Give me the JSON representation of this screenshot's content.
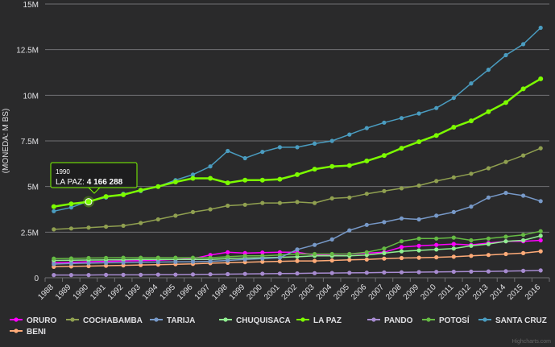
{
  "chart_data": {
    "type": "line",
    "title": "",
    "xlabel": "",
    "ylabel": "(MONEDA: M BS)",
    "ylim": [
      0,
      15000000
    ],
    "grid": true,
    "legend_position": "bottom",
    "y_ticks": [
      "0",
      "2.5M",
      "5M",
      "7.5M",
      "10M",
      "12.5M",
      "15M"
    ],
    "x": [
      "1988",
      "1989",
      "1990",
      "1991",
      "1992",
      "1993",
      "1994",
      "1995",
      "1996",
      "1997",
      "1998",
      "1999",
      "2000",
      "2001",
      "2002",
      "2003",
      "2004",
      "2005",
      "2006",
      "2007",
      "2008",
      "2009",
      "2010",
      "2011",
      "2012",
      "2013",
      "2014",
      "2015",
      "2016"
    ],
    "series": [
      {
        "name": "ORURO",
        "color": "#ff00ff",
        "values": [
          820000,
          850000,
          880000,
          900000,
          920000,
          940000,
          960000,
          1000000,
          1050000,
          1250000,
          1400000,
          1350000,
          1380000,
          1400000,
          1400000,
          1250000,
          1280000,
          1300000,
          1350000,
          1400000,
          1680000,
          1750000,
          1800000,
          1850000,
          1800000,
          1900000,
          2000000,
          2000000,
          2050000
        ]
      },
      {
        "name": "COCHABAMBA",
        "color": "#90a050",
        "values": [
          2650000,
          2700000,
          2750000,
          2800000,
          2850000,
          3000000,
          3200000,
          3400000,
          3600000,
          3750000,
          3950000,
          4000000,
          4100000,
          4100000,
          4150000,
          4100000,
          4350000,
          4400000,
          4600000,
          4750000,
          4900000,
          5050000,
          5300000,
          5500000,
          5700000,
          6000000,
          6350000,
          6700000,
          7100000
        ]
      },
      {
        "name": "TARIJA",
        "color": "#7799c8",
        "values": [
          750000,
          780000,
          800000,
          820000,
          830000,
          850000,
          860000,
          870000,
          880000,
          900000,
          950000,
          1000000,
          1050000,
          1100000,
          1550000,
          1800000,
          2100000,
          2600000,
          2900000,
          3050000,
          3250000,
          3200000,
          3400000,
          3600000,
          3900000,
          4400000,
          4650000,
          4500000,
          4200000
        ]
      },
      {
        "name": "CHUQUISACA",
        "color": "#90ee90",
        "values": [
          950000,
          960000,
          970000,
          980000,
          990000,
          1000000,
          1000000,
          1000000,
          1000000,
          1000000,
          1050000,
          1080000,
          1100000,
          1120000,
          1150000,
          1200000,
          1200000,
          1200000,
          1250000,
          1350000,
          1450000,
          1500000,
          1550000,
          1600000,
          1750000,
          1850000,
          2000000,
          2050000,
          2300000
        ]
      },
      {
        "name": "LA PAZ",
        "color": "#7cfc00",
        "values": [
          3900000,
          4050000,
          4166288,
          4450000,
          4550000,
          4800000,
          5000000,
          5250000,
          5450000,
          5450000,
          5200000,
          5350000,
          5350000,
          5400000,
          5650000,
          5950000,
          6100000,
          6150000,
          6400000,
          6700000,
          7100000,
          7450000,
          7800000,
          8250000,
          8600000,
          9100000,
          9600000,
          10350000,
          10900000
        ]
      },
      {
        "name": "PANDO",
        "color": "#a78bd0",
        "values": [
          150000,
          150000,
          150000,
          160000,
          160000,
          160000,
          170000,
          170000,
          180000,
          190000,
          200000,
          210000,
          220000,
          230000,
          240000,
          250000,
          260000,
          270000,
          280000,
          290000,
          300000,
          310000,
          320000,
          330000,
          340000,
          350000,
          360000,
          380000,
          400000
        ]
      },
      {
        "name": "POTOSÍ",
        "color": "#66bb44",
        "values": [
          1050000,
          1060000,
          1080000,
          1090000,
          1100000,
          1100000,
          1100000,
          1100000,
          1100000,
          1100000,
          1150000,
          1200000,
          1200000,
          1250000,
          1300000,
          1300000,
          1300000,
          1300000,
          1400000,
          1600000,
          2000000,
          2150000,
          2150000,
          2200000,
          2050000,
          2150000,
          2250000,
          2350000,
          2550000
        ]
      },
      {
        "name": "SANTA CRUZ",
        "color": "#4a9cc0",
        "values": [
          3650000,
          3850000,
          4200000,
          4400000,
          4600000,
          4750000,
          5000000,
          5350000,
          5650000,
          6100000,
          6950000,
          6550000,
          6900000,
          7150000,
          7150000,
          7350000,
          7500000,
          7850000,
          8200000,
          8500000,
          8750000,
          9000000,
          9300000,
          9850000,
          10650000,
          11400000,
          12200000,
          12800000,
          13700000
        ]
      },
      {
        "name": "BENI",
        "color": "#ffab78",
        "values": [
          600000,
          620000,
          640000,
          660000,
          680000,
          700000,
          720000,
          740000,
          760000,
          800000,
          820000,
          850000,
          880000,
          900000,
          920000,
          920000,
          950000,
          980000,
          1000000,
          1050000,
          1080000,
          1100000,
          1120000,
          1150000,
          1200000,
          1250000,
          1300000,
          1350000,
          1450000
        ]
      }
    ]
  },
  "tooltip": {
    "series_index": 4,
    "point_index": 2,
    "header": "1990",
    "label": "LA PAZ: ",
    "value": "4 166 288"
  },
  "credits": "Highcharts.com"
}
